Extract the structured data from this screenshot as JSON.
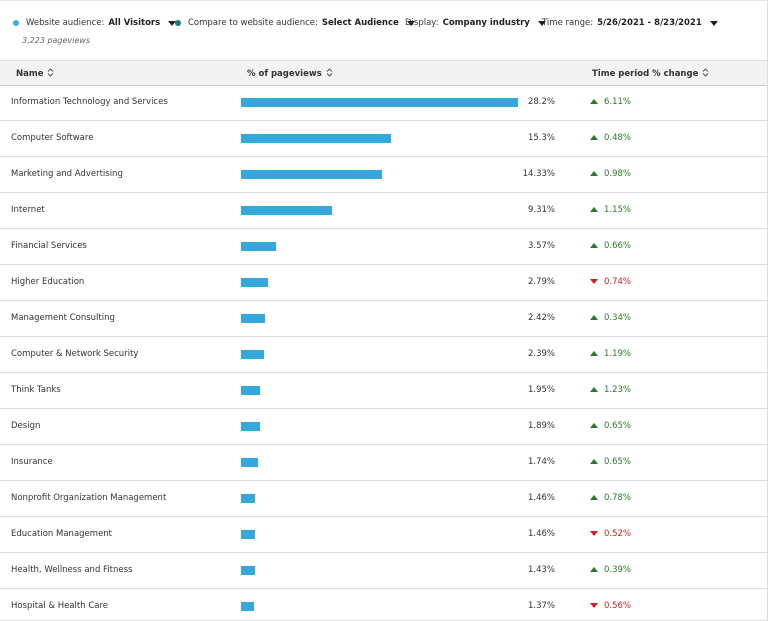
{
  "filters": [
    {
      "label": "Website audience:",
      "value": "All Visitors",
      "dot": "#3aaee0"
    },
    {
      "label": "Compare to website audience:",
      "value": "Select Audience",
      "dot": "#137c84"
    },
    {
      "label": "Display:",
      "value": "Company industry"
    },
    {
      "label": "Time range:",
      "value": "5/26/2021 - 8/23/2021"
    }
  ],
  "total": "3,223 pageviews",
  "table": {
    "columns": [
      "Name",
      "% of pageviews",
      "Time period % change"
    ],
    "bar_color": "#35a8db",
    "rows": [
      {
        "name": "Information Technology and Services",
        "share": 28.2,
        "share_label": "28.2%",
        "change": "6.11%",
        "trend": "up"
      },
      {
        "name": "Computer Software",
        "share": 15.3,
        "share_label": "15.3%",
        "change": "0.48%",
        "trend": "up"
      },
      {
        "name": "Marketing and Advertising",
        "share": 14.33,
        "share_label": "14.33%",
        "change": "0.98%",
        "trend": "up"
      },
      {
        "name": "Internet",
        "share": 9.31,
        "share_label": "9.31%",
        "change": "1.15%",
        "trend": "up"
      },
      {
        "name": "Financial Services",
        "share": 3.57,
        "share_label": "3.57%",
        "change": "0.66%",
        "trend": "up"
      },
      {
        "name": "Higher Education",
        "share": 2.79,
        "share_label": "2.79%",
        "change": "0.74%",
        "trend": "down"
      },
      {
        "name": "Management Consulting",
        "share": 2.42,
        "share_label": "2.42%",
        "change": "0.34%",
        "trend": "up"
      },
      {
        "name": "Computer & Network Security",
        "share": 2.39,
        "share_label": "2.39%",
        "change": "1.19%",
        "trend": "up"
      },
      {
        "name": "Think Tanks",
        "share": 1.95,
        "share_label": "1.95%",
        "change": "1.23%",
        "trend": "up"
      },
      {
        "name": "Design",
        "share": 1.89,
        "share_label": "1.89%",
        "change": "0.65%",
        "trend": "up"
      },
      {
        "name": "Insurance",
        "share": 1.74,
        "share_label": "1.74%",
        "change": "0.65%",
        "trend": "up"
      },
      {
        "name": "Nonprofit Organization Management",
        "share": 1.46,
        "share_label": "1.46%",
        "change": "0.78%",
        "trend": "up"
      },
      {
        "name": "Education Management",
        "share": 1.46,
        "share_label": "1.46%",
        "change": "0.52%",
        "trend": "down"
      },
      {
        "name": "Health, Wellness and Fitness",
        "share": 1.43,
        "share_label": "1.43%",
        "change": "0.39%",
        "trend": "up"
      },
      {
        "name": "Hospital & Health Care",
        "share": 1.37,
        "share_label": "1.37%",
        "change": "0.56%",
        "trend": "down"
      }
    ]
  }
}
